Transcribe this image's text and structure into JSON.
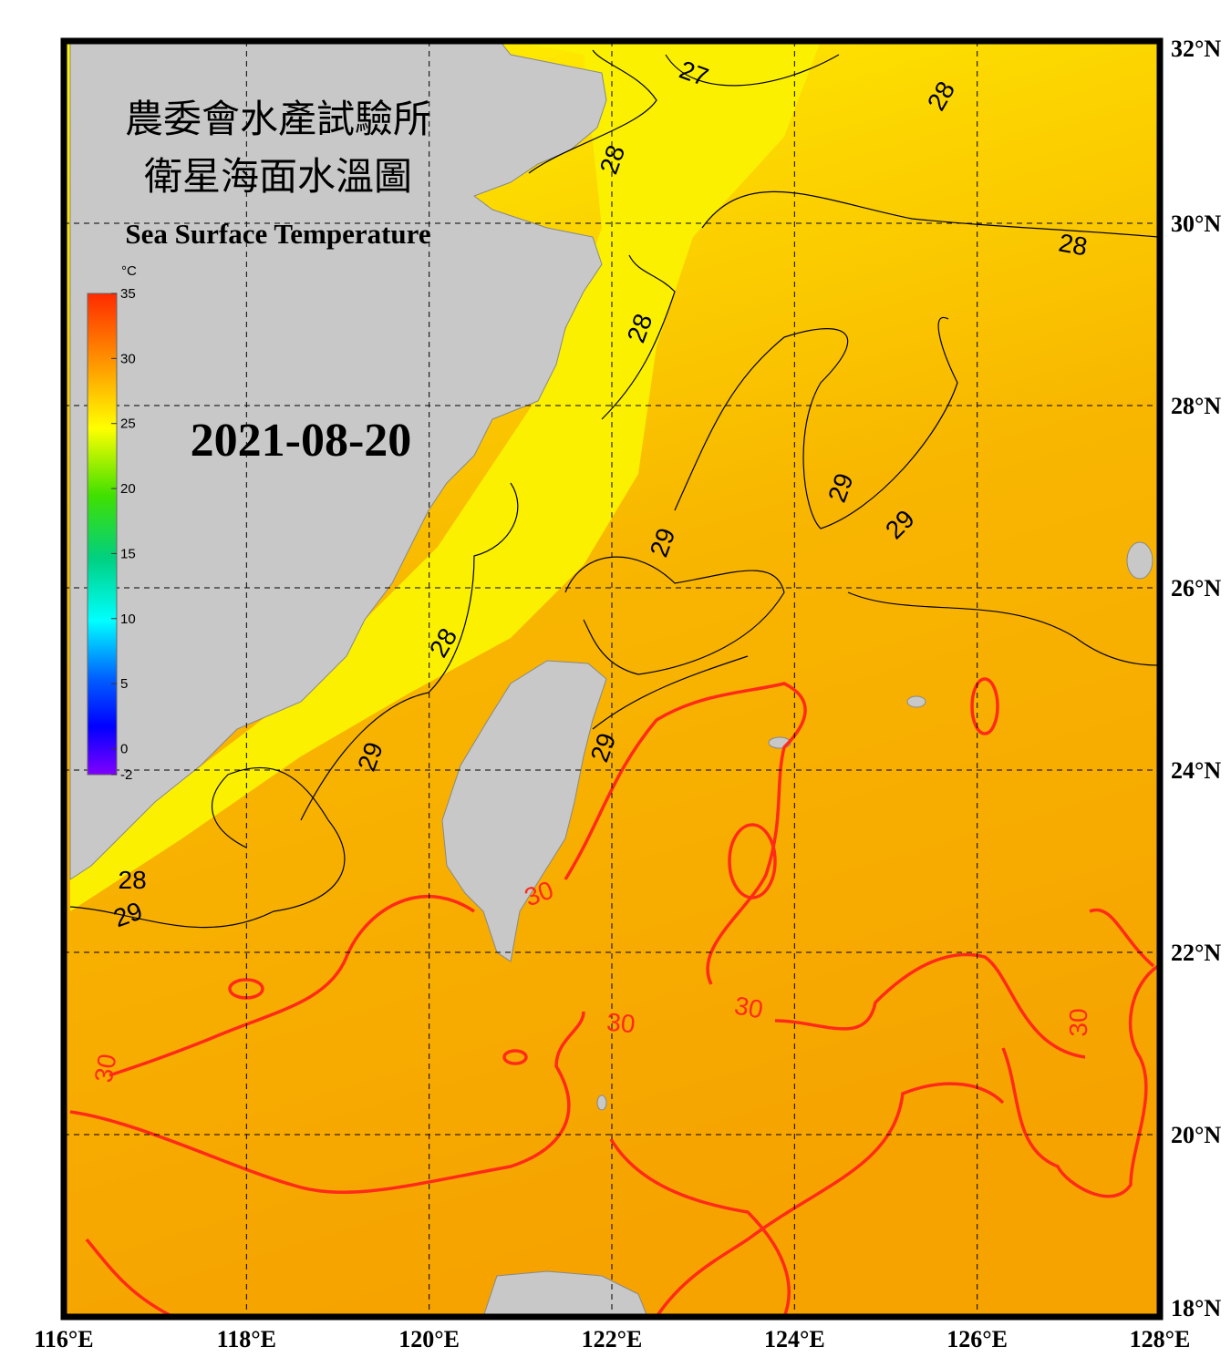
{
  "header": {
    "title_zh_1": "農委會水產試驗所",
    "title_zh_2": "衛星海面水溫圖",
    "title_en": "Sea Surface Temperature",
    "date": "2021-08-20"
  },
  "colorbar": {
    "unit": "°C",
    "range": [
      -2,
      35
    ],
    "ticks": [
      35,
      30,
      25,
      20,
      15,
      10,
      5,
      0,
      -2
    ]
  },
  "map": {
    "xlim": [
      116,
      128
    ],
    "ylim": [
      18,
      32
    ],
    "xticks": [
      {
        "value": 116,
        "label": "116°E"
      },
      {
        "value": 118,
        "label": "118°E"
      },
      {
        "value": 120,
        "label": "120°E"
      },
      {
        "value": 122,
        "label": "122°E"
      },
      {
        "value": 124,
        "label": "124°E"
      },
      {
        "value": 126,
        "label": "126°E"
      },
      {
        "value": 128,
        "label": "128°E"
      }
    ],
    "yticks": [
      {
        "value": 32,
        "label": "32°N"
      },
      {
        "value": 30,
        "label": "30°N"
      },
      {
        "value": 28,
        "label": "28°N"
      },
      {
        "value": 26,
        "label": "26°N"
      },
      {
        "value": 24,
        "label": "24°N"
      },
      {
        "value": 22,
        "label": "22°N"
      },
      {
        "value": 20,
        "label": "20°N"
      },
      {
        "value": 18,
        "label": "18°N"
      }
    ]
  },
  "contour_labels": [
    {
      "value": 27,
      "lon": 122.9,
      "lat": 31.65,
      "color": "#000000"
    },
    {
      "value": 28,
      "lon": 125.6,
      "lat": 31.4,
      "color": "#000000"
    },
    {
      "value": 28,
      "lon": 122.0,
      "lat": 30.7,
      "color": "#000000"
    },
    {
      "value": 28,
      "lon": 127.05,
      "lat": 29.77,
      "color": "#000000"
    },
    {
      "value": 28,
      "lon": 122.3,
      "lat": 28.85,
      "color": "#000000"
    },
    {
      "value": 29,
      "lon": 124.5,
      "lat": 27.1,
      "color": "#000000"
    },
    {
      "value": 29,
      "lon": 125.15,
      "lat": 26.7,
      "color": "#000000"
    },
    {
      "value": 29,
      "lon": 122.55,
      "lat": 26.5,
      "color": "#000000"
    },
    {
      "value": 28,
      "lon": 120.15,
      "lat": 25.4,
      "color": "#000000"
    },
    {
      "value": 29,
      "lon": 119.35,
      "lat": 24.15,
      "color": "#000000"
    },
    {
      "value": 29,
      "lon": 121.9,
      "lat": 24.25,
      "color": "#000000"
    },
    {
      "value": 28,
      "lon": 116.75,
      "lat": 22.8,
      "color": "#000000"
    },
    {
      "value": 29,
      "lon": 116.7,
      "lat": 22.42,
      "color": "#000000"
    },
    {
      "value": 30,
      "lon": 121.2,
      "lat": 22.65,
      "color": "#ff2a1a"
    },
    {
      "value": 30,
      "lon": 123.5,
      "lat": 21.4,
      "color": "#ff2a1a"
    },
    {
      "value": 30,
      "lon": 122.1,
      "lat": 21.23,
      "color": "#ff2a1a"
    },
    {
      "value": 30,
      "lon": 127.1,
      "lat": 21.23,
      "color": "#ff2a1a"
    },
    {
      "value": 30,
      "lon": 116.45,
      "lat": 20.73,
      "color": "#ff2a1a"
    }
  ]
}
